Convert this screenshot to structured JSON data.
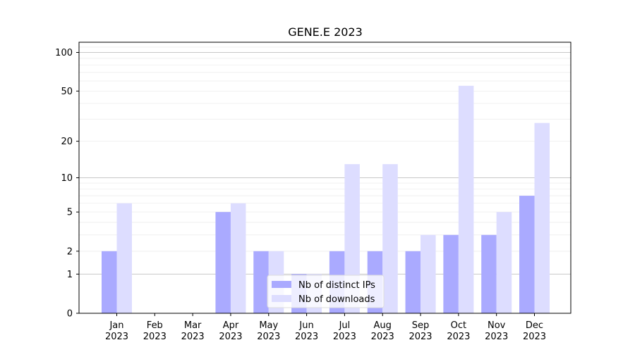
{
  "chart_data": {
    "type": "bar",
    "title": "GENE.E 2023",
    "xlabel": "",
    "ylabel": "",
    "y_scale": "log(1+y)",
    "ylim": [
      0,
      120
    ],
    "y_ticks": [
      0,
      1,
      2,
      5,
      10,
      20,
      50,
      100
    ],
    "categories": [
      [
        "Jan",
        "2023"
      ],
      [
        "Feb",
        "2023"
      ],
      [
        "Mar",
        "2023"
      ],
      [
        "Apr",
        "2023"
      ],
      [
        "May",
        "2023"
      ],
      [
        "Jun",
        "2023"
      ],
      [
        "Jul",
        "2023"
      ],
      [
        "Aug",
        "2023"
      ],
      [
        "Sep",
        "2023"
      ],
      [
        "Oct",
        "2023"
      ],
      [
        "Nov",
        "2023"
      ],
      [
        "Dec",
        "2023"
      ]
    ],
    "series": [
      {
        "name": "Nb of distinct IPs",
        "color": "#aaaaff",
        "values": [
          2,
          0,
          0,
          5,
          2,
          1,
          2,
          2,
          2,
          3,
          3,
          7
        ]
      },
      {
        "name": "Nb of downloads",
        "color": "#ddddff",
        "values": [
          6,
          0,
          0,
          6,
          2,
          1,
          13,
          13,
          3,
          55,
          5,
          28
        ]
      }
    ],
    "legend_position": "lower-center",
    "grid": true
  }
}
